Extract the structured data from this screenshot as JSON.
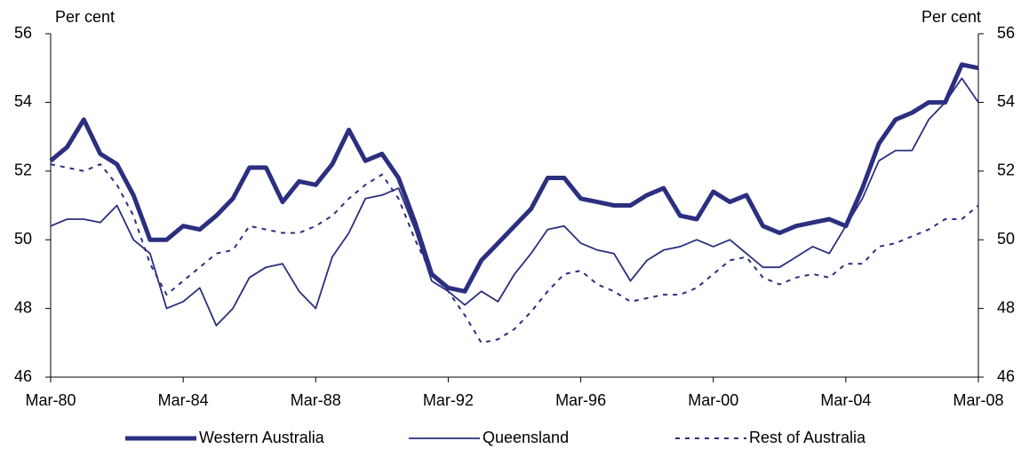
{
  "chart_data": {
    "type": "line",
    "y_label": "Per cent",
    "y2_label": "Per cent",
    "categories": [
      "Mar-80",
      null,
      null,
      null,
      null,
      null,
      null,
      null,
      "Mar-84",
      null,
      null,
      null,
      null,
      null,
      null,
      null,
      "Mar-88",
      null,
      null,
      null,
      null,
      null,
      null,
      null,
      "Mar-92",
      null,
      null,
      null,
      null,
      null,
      null,
      null,
      "Mar-96",
      null,
      null,
      null,
      null,
      null,
      null,
      null,
      "Mar-00",
      null,
      null,
      null,
      null,
      null,
      null,
      null,
      "Mar-04",
      null,
      null,
      null,
      null,
      null,
      null,
      null,
      "Mar-08"
    ],
    "series": [
      {
        "name": "Western Australia",
        "color": "#2b2f7f",
        "style": "thick",
        "values": [
          52.3,
          52.7,
          53.5,
          52.5,
          52.2,
          51.3,
          50.0,
          50.0,
          50.4,
          50.3,
          50.7,
          51.2,
          52.1,
          52.1,
          51.1,
          51.7,
          51.6,
          52.2,
          53.2,
          52.3,
          52.5,
          51.8,
          50.5,
          49.0,
          48.6,
          48.5,
          49.4,
          49.9,
          50.4,
          50.9,
          51.8,
          51.8,
          51.2,
          51.1,
          51.0,
          51.0,
          51.3,
          51.5,
          50.7,
          50.6,
          51.4,
          51.1,
          51.3,
          50.4,
          50.2,
          50.4,
          50.5,
          50.6,
          50.4,
          51.5,
          52.8,
          53.5,
          53.7,
          54.0,
          54.0,
          55.1,
          55.0
        ]
      },
      {
        "name": "Queensland",
        "color": "#2b2f7f",
        "style": "thin",
        "values": [
          50.4,
          50.6,
          50.6,
          50.5,
          51.0,
          50.0,
          49.6,
          48.0,
          48.2,
          48.6,
          47.5,
          48.0,
          48.9,
          49.2,
          49.3,
          48.5,
          48.0,
          49.5,
          50.2,
          51.2,
          51.3,
          51.5,
          50.3,
          48.8,
          48.5,
          48.1,
          48.5,
          48.2,
          49.0,
          49.6,
          50.3,
          50.4,
          49.9,
          49.7,
          49.6,
          48.8,
          49.4,
          49.7,
          49.8,
          50.0,
          49.8,
          50.0,
          49.6,
          49.2,
          49.2,
          49.5,
          49.8,
          49.6,
          50.4,
          51.2,
          52.3,
          52.6,
          52.6,
          53.5,
          54.0,
          54.7,
          54.0
        ]
      },
      {
        "name": "Rest of Australia",
        "color": "#2b2f7f",
        "style": "dashed",
        "values": [
          52.2,
          52.1,
          52.0,
          52.2,
          51.6,
          50.7,
          49.3,
          48.4,
          48.8,
          49.2,
          49.6,
          49.7,
          50.4,
          50.3,
          50.2,
          50.2,
          50.4,
          50.7,
          51.2,
          51.6,
          51.9,
          51.2,
          50.0,
          49.0,
          48.5,
          47.8,
          47.0,
          47.1,
          47.4,
          47.9,
          48.5,
          49.0,
          49.1,
          48.7,
          48.5,
          48.2,
          48.3,
          48.4,
          48.4,
          48.6,
          49.0,
          49.4,
          49.5,
          48.9,
          48.7,
          48.9,
          49.0,
          48.9,
          49.3,
          49.3,
          49.8,
          49.9,
          50.1,
          50.3,
          50.6,
          50.6,
          51.0
        ]
      }
    ],
    "ylim": [
      46,
      56
    ],
    "yticks": [
      46,
      48,
      50,
      52,
      54,
      56
    ],
    "y2lim": [
      46,
      56
    ],
    "y2ticks": [
      46,
      48,
      50,
      52,
      54,
      56
    ],
    "grid": false,
    "legend": "bottom"
  }
}
